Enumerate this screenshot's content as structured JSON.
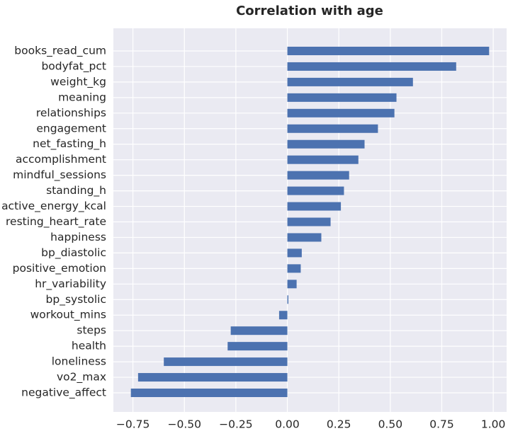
{
  "chart_data": {
    "type": "barh",
    "title": "Correlation with age",
    "categories": [
      "books_read_cum",
      "bodyfat_pct",
      "weight_kg",
      "meaning",
      "relationships",
      "engagement",
      "net_fasting_h",
      "accomplishment",
      "mindful_sessions",
      "standing_h",
      "active_energy_kcal",
      "resting_heart_rate",
      "happiness",
      "bp_diastolic",
      "positive_emotion",
      "hr_variability",
      "bp_systolic",
      "workout_mins",
      "steps",
      "health",
      "loneliness",
      "vo2_max",
      "negative_affect"
    ],
    "values": [
      0.98,
      0.82,
      0.61,
      0.53,
      0.52,
      0.44,
      0.375,
      0.345,
      0.3,
      0.275,
      0.26,
      0.21,
      0.165,
      0.07,
      0.065,
      0.045,
      0.005,
      -0.04,
      -0.275,
      -0.29,
      -0.6,
      -0.725,
      -0.76
    ],
    "color": "#4c72b0",
    "xlim": [
      -0.845,
      1.065
    ],
    "xticks": [
      {
        "value": -0.75,
        "label": "−0.75"
      },
      {
        "value": -0.5,
        "label": "−0.50"
      },
      {
        "value": -0.25,
        "label": "−0.25"
      },
      {
        "value": 0,
        "label": "0.00"
      },
      {
        "value": 0.25,
        "label": "0.25"
      },
      {
        "value": 0.5,
        "label": "0.50"
      },
      {
        "value": 0.75,
        "label": "0.75"
      },
      {
        "value": 1,
        "label": "1.00"
      }
    ],
    "grid": true
  }
}
